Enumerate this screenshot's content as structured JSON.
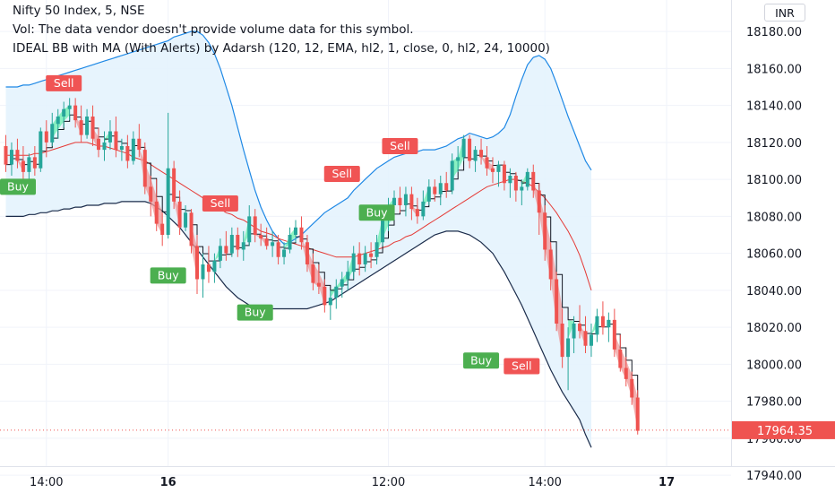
{
  "legend": {
    "line1": "Nifty 50 Index, 5, NSE",
    "line2": "Vol: The data vendor doesn't provide volume data for this symbol.",
    "line3": "IDEAL BB with MA (With Alerts) by Adarsh (120, 12, EMA, hl2, 1, close, 0, hl2, 24, 10000)"
  },
  "currency": "INR",
  "colors": {
    "up": "#26a69a",
    "down": "#ef5350",
    "band_fill": "#e3f2fd",
    "band_line": "#1e88e5",
    "lower_band": "#1a2b4a",
    "ma": "#e53935",
    "step": "#131722",
    "buy": "#4caf50",
    "sell": "#f05454"
  },
  "chart_data": {
    "type": "candlestick",
    "symbol": "Nifty 50 Index",
    "interval": "5",
    "exchange": "NSE",
    "ylim": [
      17930,
      18190
    ],
    "y_ticks": [
      18180,
      18160,
      18140,
      18120,
      18100,
      18080,
      18060,
      18040,
      18020,
      18000,
      17980,
      17960,
      17940
    ],
    "x_ticks": [
      {
        "label": "14:00",
        "bold": false,
        "bar": 7
      },
      {
        "label": "16",
        "bold": true,
        "bar": 28
      },
      {
        "label": "12:00",
        "bold": false,
        "bar": 66
      },
      {
        "label": "14:00",
        "bold": false,
        "bar": 93
      },
      {
        "label": "17",
        "bold": true,
        "bar": 114
      }
    ],
    "last_price": "17964.35",
    "last_price_value": 17964.35,
    "candles": [
      [
        18118,
        18124,
        18104,
        18108
      ],
      [
        18108,
        18120,
        18102,
        18116
      ],
      [
        18116,
        18122,
        18106,
        18110
      ],
      [
        18110,
        18118,
        18100,
        18104
      ],
      [
        18104,
        18114,
        18098,
        18112
      ],
      [
        18112,
        18118,
        18102,
        18106
      ],
      [
        18106,
        18128,
        18104,
        18126
      ],
      [
        18126,
        18132,
        18112,
        18120
      ],
      [
        18120,
        18136,
        18118,
        18130
      ],
      [
        18130,
        18138,
        18122,
        18134
      ],
      [
        18134,
        18142,
        18128,
        18138
      ],
      [
        18138,
        18144,
        18132,
        18140
      ],
      [
        18140,
        18144,
        18128,
        18132
      ],
      [
        18132,
        18140,
        18120,
        18124
      ],
      [
        18124,
        18138,
        18122,
        18134
      ],
      [
        18134,
        18140,
        18118,
        18122
      ],
      [
        18122,
        18128,
        18112,
        18116
      ],
      [
        18116,
        18126,
        18110,
        18120
      ],
      [
        18120,
        18132,
        18116,
        18126
      ],
      [
        18126,
        18134,
        18112,
        18116
      ],
      [
        18116,
        18122,
        18110,
        18118
      ],
      [
        18118,
        18124,
        18106,
        18110
      ],
      [
        18110,
        18126,
        18108,
        18122
      ],
      [
        18122,
        18130,
        18112,
        18116
      ],
      [
        18116,
        18120,
        18092,
        18096
      ],
      [
        18096,
        18102,
        18080,
        18088
      ],
      [
        18088,
        18100,
        18072,
        18076
      ],
      [
        18076,
        18082,
        18064,
        18070
      ],
      [
        18070,
        18136,
        18068,
        18106
      ],
      [
        18106,
        18110,
        18084,
        18088
      ],
      [
        18088,
        18094,
        18070,
        18074
      ],
      [
        18074,
        18086,
        18072,
        18082
      ],
      [
        18082,
        18084,
        18060,
        18064
      ],
      [
        18064,
        18070,
        18038,
        18046
      ],
      [
        18046,
        18060,
        18036,
        18054
      ],
      [
        18054,
        18064,
        18044,
        18050
      ],
      [
        18050,
        18060,
        18044,
        18056
      ],
      [
        18056,
        18068,
        18052,
        18064
      ],
      [
        18064,
        18072,
        18056,
        18060
      ],
      [
        18060,
        18074,
        18058,
        18070
      ],
      [
        18070,
        18074,
        18058,
        18062
      ],
      [
        18062,
        18072,
        18056,
        18066
      ],
      [
        18066,
        18086,
        18064,
        18080
      ],
      [
        18080,
        18084,
        18066,
        18070
      ],
      [
        18070,
        18076,
        18064,
        18068
      ],
      [
        18068,
        18074,
        18062,
        18064
      ],
      [
        18064,
        18072,
        18058,
        18066
      ],
      [
        18066,
        18070,
        18054,
        18058
      ],
      [
        18058,
        18066,
        18054,
        18062
      ],
      [
        18062,
        18074,
        18060,
        18070
      ],
      [
        18070,
        18078,
        18066,
        18074
      ],
      [
        18074,
        18080,
        18062,
        18066
      ],
      [
        18066,
        18070,
        18050,
        18054
      ],
      [
        18054,
        18060,
        18040,
        18044
      ],
      [
        18044,
        18054,
        18038,
        18042
      ],
      [
        18042,
        18046,
        18028,
        18032
      ],
      [
        18032,
        18040,
        18024,
        18036
      ],
      [
        18036,
        18046,
        18030,
        18042
      ],
      [
        18042,
        18050,
        18036,
        18046
      ],
      [
        18046,
        18056,
        18040,
        18050
      ],
      [
        18050,
        18064,
        18046,
        18060
      ],
      [
        18060,
        18066,
        18048,
        18054
      ],
      [
        18054,
        18064,
        18050,
        18060
      ],
      [
        18060,
        18066,
        18052,
        18058
      ],
      [
        18058,
        18070,
        18054,
        18066
      ],
      [
        18066,
        18084,
        18064,
        18080
      ],
      [
        18080,
        18090,
        18072,
        18086
      ],
      [
        18086,
        18094,
        18080,
        18090
      ],
      [
        18090,
        18096,
        18082,
        18086
      ],
      [
        18086,
        18096,
        18080,
        18092
      ],
      [
        18092,
        18096,
        18078,
        18084
      ],
      [
        18084,
        18090,
        18076,
        18080
      ],
      [
        18080,
        18094,
        18078,
        18088
      ],
      [
        18088,
        18100,
        18086,
        18096
      ],
      [
        18096,
        18100,
        18088,
        18092
      ],
      [
        18092,
        18102,
        18086,
        18098
      ],
      [
        18098,
        18104,
        18090,
        18094
      ],
      [
        18094,
        18114,
        18092,
        18110
      ],
      [
        18110,
        18118,
        18104,
        18112
      ],
      [
        18112,
        18124,
        18110,
        18122
      ],
      [
        18122,
        18124,
        18106,
        18110
      ],
      [
        18110,
        18118,
        18104,
        18116
      ],
      [
        18116,
        18122,
        18108,
        18112
      ],
      [
        18112,
        18118,
        18102,
        18106
      ],
      [
        18106,
        18112,
        18098,
        18104
      ],
      [
        18104,
        18110,
        18096,
        18108
      ],
      [
        18108,
        18110,
        18094,
        18098
      ],
      [
        18098,
        18106,
        18090,
        18102
      ],
      [
        18102,
        18104,
        18088,
        18094
      ],
      [
        18094,
        18100,
        18086,
        18096
      ],
      [
        18096,
        18106,
        18094,
        18104
      ],
      [
        18104,
        18108,
        18090,
        18094
      ],
      [
        18094,
        18098,
        18070,
        18082
      ],
      [
        18082,
        18086,
        18056,
        18062
      ],
      [
        18062,
        18066,
        18040,
        18046
      ],
      [
        18046,
        18050,
        18018,
        18022
      ],
      [
        18022,
        18030,
        17998,
        18004
      ],
      [
        18004,
        18020,
        17986,
        18014
      ],
      [
        18014,
        18026,
        18006,
        18022
      ],
      [
        18022,
        18032,
        18014,
        18018
      ],
      [
        18018,
        18026,
        18006,
        18010
      ],
      [
        18010,
        18022,
        18004,
        18016
      ],
      [
        18016,
        18030,
        18012,
        18026
      ],
      [
        18026,
        18034,
        18016,
        18020
      ],
      [
        18020,
        18028,
        18012,
        18024
      ],
      [
        18024,
        18030,
        18004,
        18008
      ],
      [
        18008,
        18016,
        17996,
        17998
      ],
      [
        17998,
        18004,
        17988,
        17992
      ],
      [
        17992,
        17996,
        17978,
        17982
      ],
      [
        17982,
        17986,
        17962,
        17964
      ]
    ],
    "bb_upper": [
      18150,
      18150,
      18150,
      18151,
      18151,
      18152,
      18153,
      18154,
      18155,
      18156,
      18157,
      18158,
      18159,
      18160,
      18161,
      18162,
      18163,
      18164,
      18165,
      18166,
      18167,
      18168,
      18169,
      18170,
      18171,
      18172,
      18173,
      18174,
      18175,
      18177,
      18178,
      18179,
      18180,
      18180,
      18178,
      18174,
      18168,
      18160,
      18150,
      18140,
      18128,
      18116,
      18105,
      18094,
      18085,
      18078,
      18072,
      18068,
      18065,
      18066,
      18068,
      18070,
      18073,
      18076,
      18079,
      18082,
      18084,
      18086,
      18088,
      18090,
      18094,
      18097,
      18100,
      18103,
      18106,
      18108,
      18110,
      18112,
      18113,
      18114,
      18115,
      18115,
      18116,
      18116,
      18116,
      18117,
      18118,
      18120,
      18122,
      18123,
      18125,
      18124,
      18123,
      18122,
      18123,
      18125,
      18128,
      18135,
      18145,
      18154,
      18162,
      18166,
      18167,
      18165,
      18160,
      18152,
      18143,
      18134,
      18126,
      18118,
      18110,
      18105
    ],
    "bb_lower": [
      18080,
      18080,
      18080,
      18080,
      18081,
      18081,
      18082,
      18082,
      18083,
      18083,
      18084,
      18084,
      18085,
      18085,
      18086,
      18086,
      18086,
      18087,
      18087,
      18087,
      18088,
      18088,
      18088,
      18088,
      18088,
      18087,
      18085,
      18083,
      18080,
      18077,
      18074,
      18070,
      18066,
      18062,
      18058,
      18054,
      18050,
      18046,
      18042,
      18039,
      18036,
      18034,
      18032,
      18031,
      18030,
      18030,
      18030,
      18030,
      18030,
      18030,
      18030,
      18030,
      18030,
      18031,
      18032,
      18033,
      18034,
      18036,
      18038,
      18040,
      18042,
      18044,
      18046,
      18048,
      18050,
      18052,
      18054,
      18056,
      18058,
      18060,
      18062,
      18064,
      18066,
      18068,
      18070,
      18071,
      18072,
      18072,
      18072,
      18071,
      18070,
      18068,
      18066,
      18063,
      18060,
      18055,
      18050,
      18044,
      18038,
      18032,
      18025,
      18018,
      18011,
      18004,
      17997,
      17991,
      17985,
      17980,
      17975,
      17970,
      17962,
      17955
    ],
    "ma": [
      18113,
      18113,
      18113,
      18113,
      18113,
      18114,
      18114,
      18115,
      18116,
      18117,
      18118,
      18119,
      18120,
      18120,
      18120,
      18119,
      18118,
      18118,
      18117,
      18116,
      18115,
      18114,
      18112,
      18111,
      18110,
      18108,
      18106,
      18104,
      18102,
      18100,
      18098,
      18096,
      18094,
      18092,
      18090,
      18088,
      18086,
      18084,
      18082,
      18081,
      18079,
      18078,
      18076,
      18074,
      18072,
      18071,
      18070,
      18068,
      18067,
      18066,
      18065,
      18064,
      18063,
      18062,
      18061,
      18060,
      18059,
      18058,
      18058,
      18058,
      18058,
      18059,
      18060,
      18061,
      18062,
      18063,
      18064,
      18066,
      18067,
      18069,
      18070,
      18072,
      18074,
      18076,
      18078,
      18080,
      18082,
      18084,
      18086,
      18088,
      18090,
      18092,
      18094,
      18096,
      18097,
      18098,
      18099,
      18100,
      18100,
      18099,
      18098,
      18096,
      18093,
      18090,
      18086,
      18082,
      18077,
      18072,
      18066,
      18059,
      18050,
      18040
    ],
    "signals": [
      {
        "type": "Buy",
        "bar": 0,
        "price": 18096
      },
      {
        "type": "Sell",
        "bar": 10,
        "price": 18152
      },
      {
        "type": "Buy",
        "bar": 28,
        "price": 18048
      },
      {
        "type": "Sell",
        "bar": 37,
        "price": 18087
      },
      {
        "type": "Buy",
        "bar": 43,
        "price": 18028
      },
      {
        "type": "Sell",
        "bar": 58,
        "price": 18103
      },
      {
        "type": "Buy",
        "bar": 64,
        "price": 18082
      },
      {
        "type": "Sell",
        "bar": 68,
        "price": 18118
      },
      {
        "type": "Buy",
        "bar": 82,
        "price": 18002
      },
      {
        "type": "Sell",
        "bar": 89,
        "price": 17999
      }
    ]
  }
}
